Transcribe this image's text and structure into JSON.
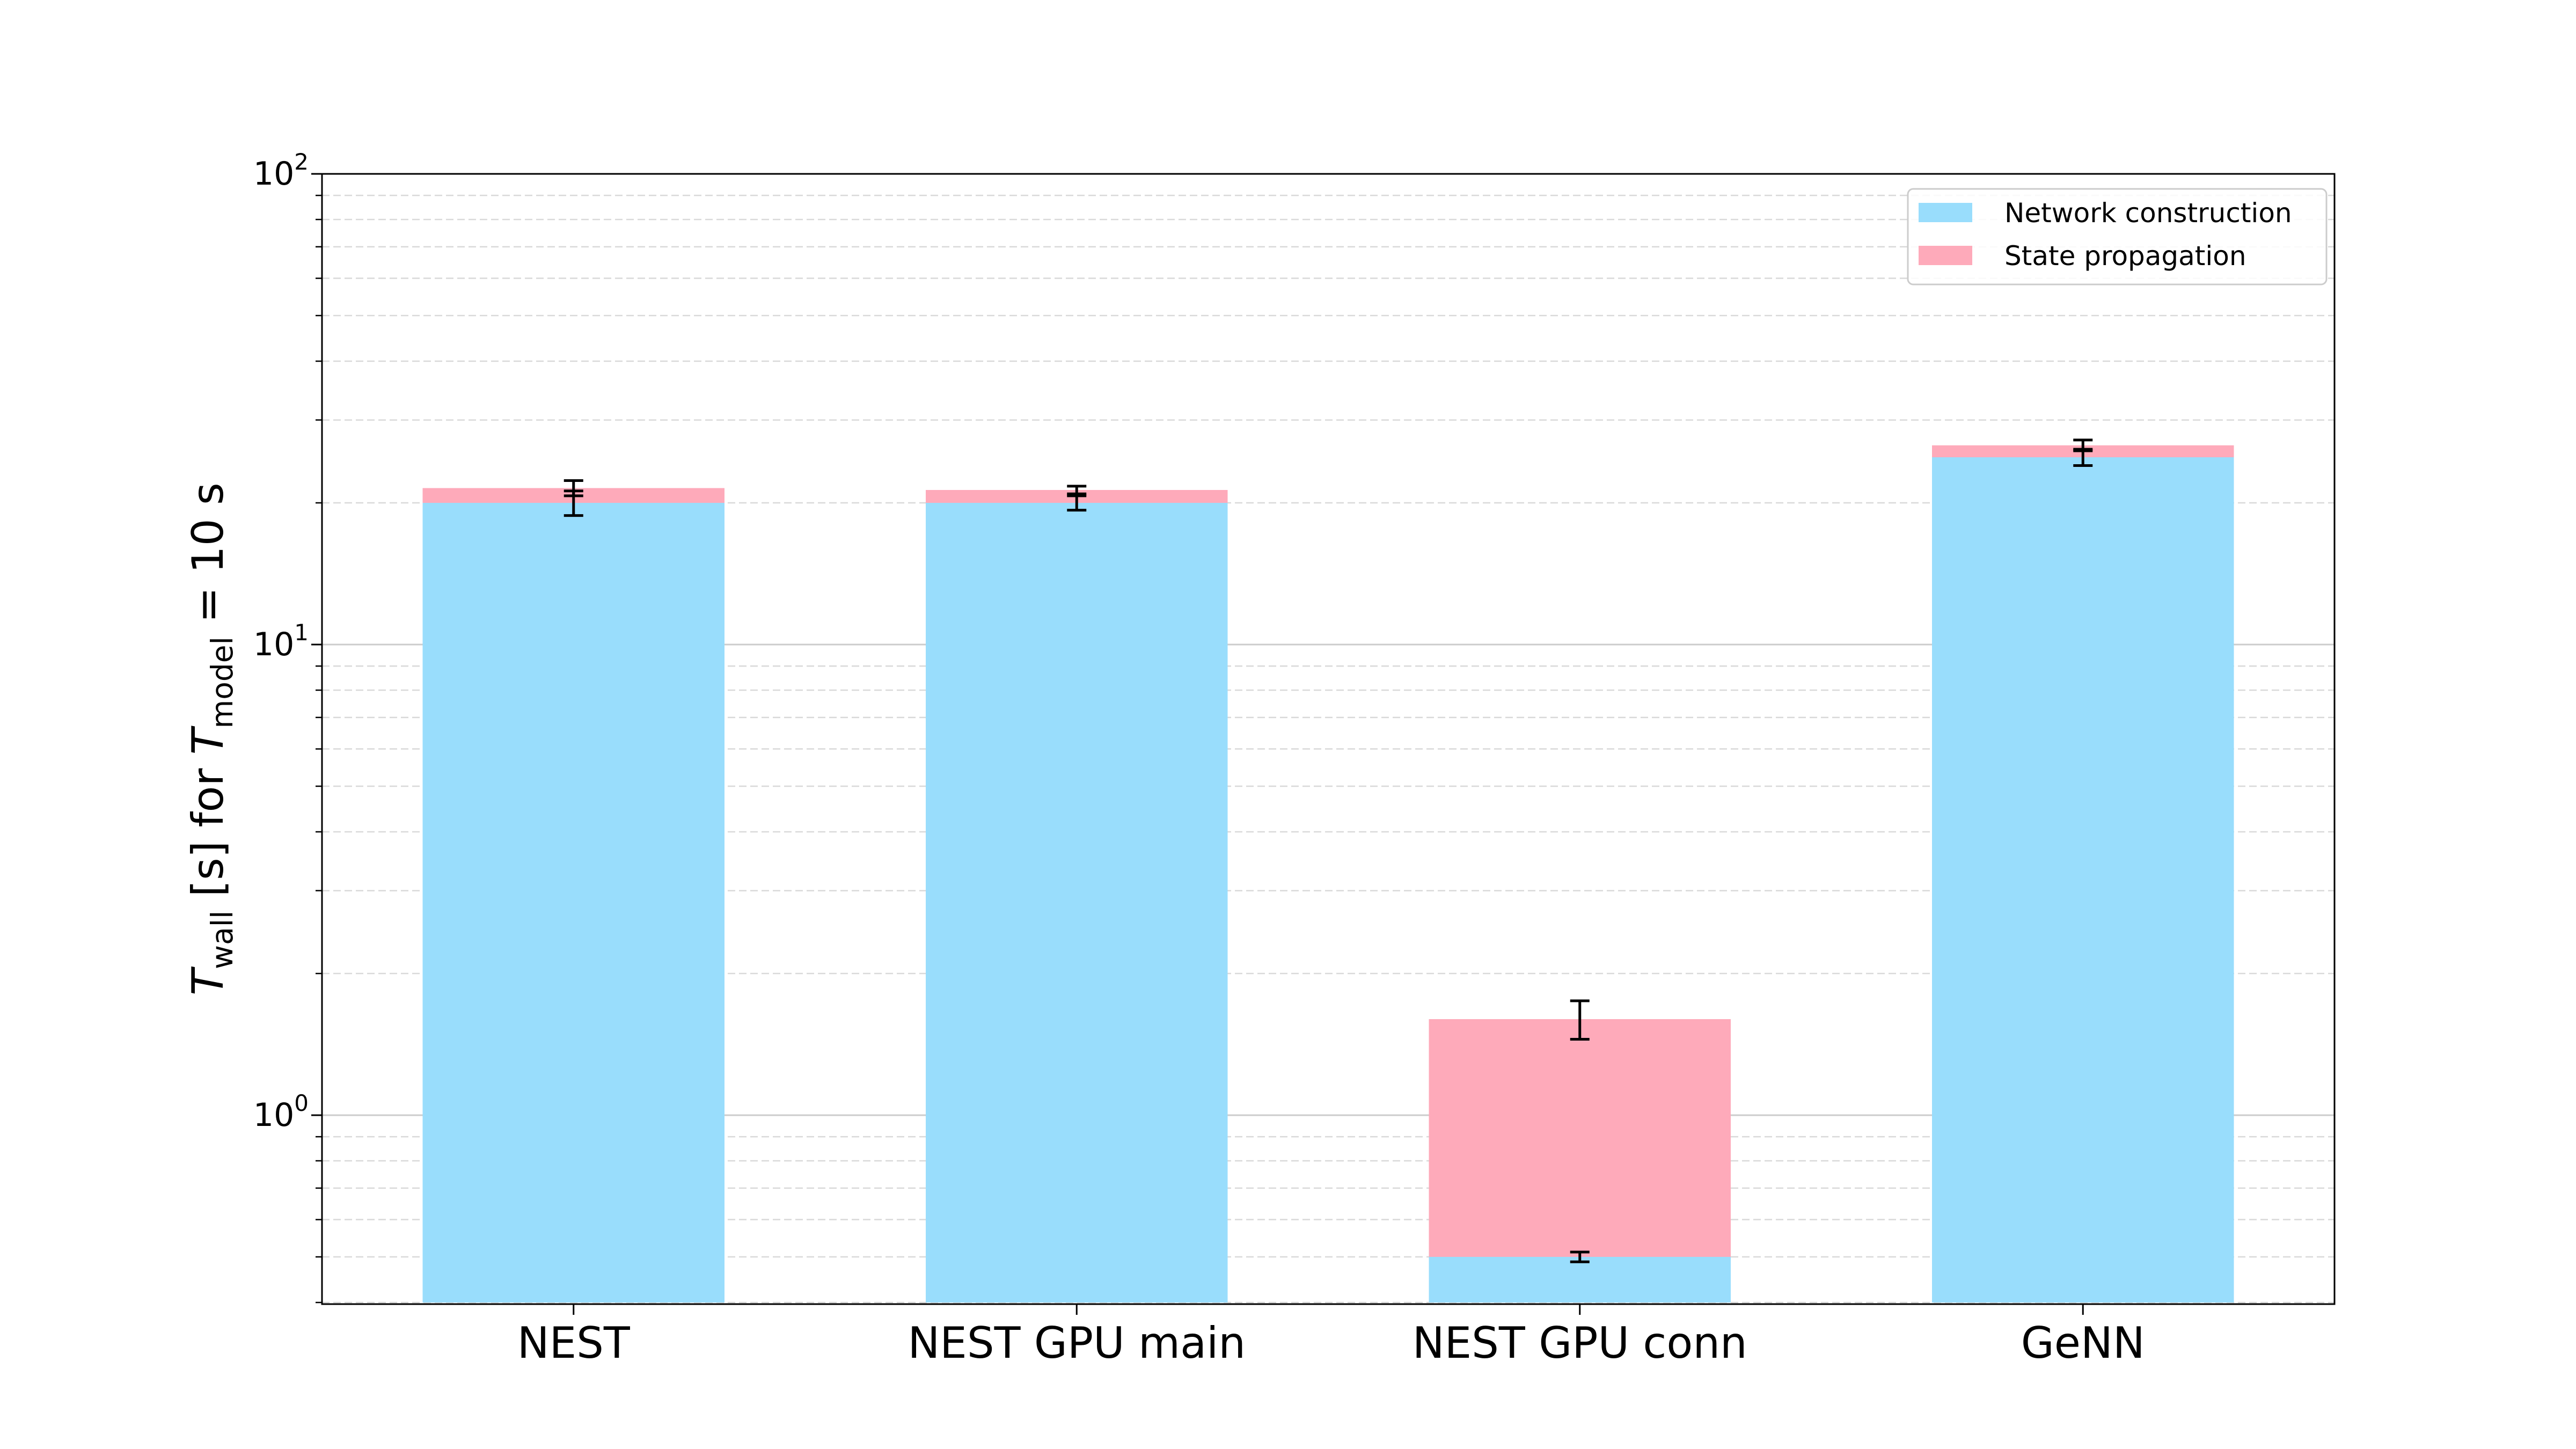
{
  "chart_data": {
    "type": "bar",
    "stacked": true,
    "y_scale": "log",
    "ylim": [
      0.4,
      100
    ],
    "grid": {
      "major": true,
      "minor": true,
      "minor_style": "dashed"
    },
    "legend_position": "top-right",
    "ylabel": {
      "main": "T",
      "sub1": "wall",
      "mid": " [s] for ",
      "main2": "T",
      "sub2": "model",
      "tail": " = 10 s"
    },
    "yticks": [
      {
        "base": "10",
        "exp": "0",
        "value": 1
      },
      {
        "base": "10",
        "exp": "1",
        "value": 10
      },
      {
        "base": "10",
        "exp": "2",
        "value": 100
      }
    ],
    "categories": [
      "NEST",
      "NEST GPU main",
      "NEST GPU conn",
      "GeNN"
    ],
    "series": [
      {
        "name": "Network construction",
        "color": "#99ddfc",
        "values": [
          20.0,
          20.0,
          0.5,
          25.0
        ],
        "error": [
          1.2,
          0.7,
          0.012,
          1.0
        ]
      },
      {
        "name": "State propagation",
        "color": "#feaaba",
        "values": [
          1.5,
          1.3,
          1.1,
          1.5
        ],
        "error": [
          0.8,
          0.4,
          0.15,
          0.7
        ]
      }
    ]
  }
}
